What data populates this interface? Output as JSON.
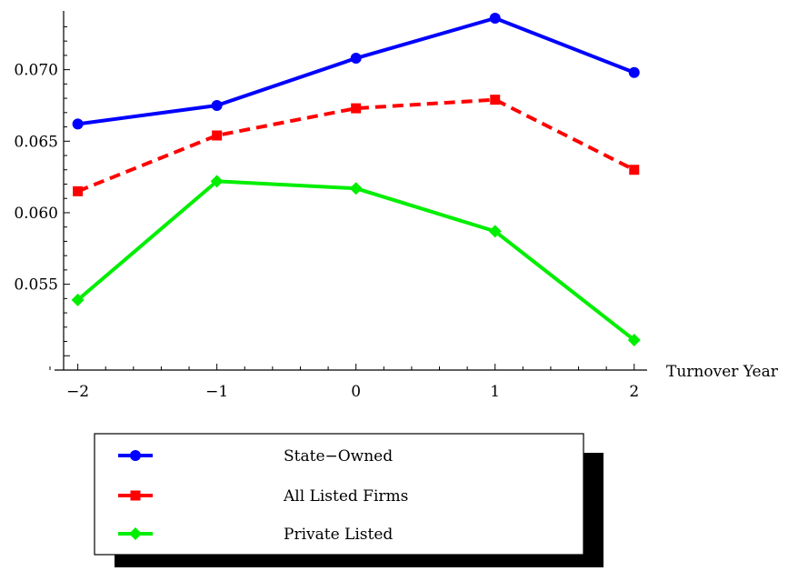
{
  "chart_data": {
    "type": "line",
    "xlabel": "Turnover Year",
    "ylabel": "",
    "x": [
      -2,
      -1,
      0,
      1,
      2
    ],
    "x_tick_labels": [
      "−2",
      "−1",
      "0",
      "1",
      "2"
    ],
    "xlim": [
      -2.2,
      2.08
    ],
    "ylim": [
      0.049,
      0.0736
    ],
    "y_ticks": [
      0.055,
      0.06,
      0.065,
      0.07
    ],
    "y_tick_labels": [
      "0.055",
      "0.060",
      "0.065",
      "0.070"
    ],
    "grid": false,
    "legend_position": "bottom",
    "series": [
      {
        "name": "State−Owned",
        "color": "#0000ff",
        "marker": "circle",
        "dashed": false,
        "values": [
          0.0662,
          0.0675,
          0.0708,
          0.0736,
          0.0698
        ]
      },
      {
        "name": "All Listed Firms",
        "color": "#ff0000",
        "marker": "square",
        "dashed": true,
        "values": [
          0.0615,
          0.0654,
          0.0673,
          0.0679,
          0.063
        ]
      },
      {
        "name": "Private Listed",
        "color": "#00ee00",
        "marker": "diamond",
        "dashed": false,
        "values": [
          0.0539,
          0.0622,
          0.0617,
          0.0587,
          0.0511
        ]
      }
    ]
  }
}
